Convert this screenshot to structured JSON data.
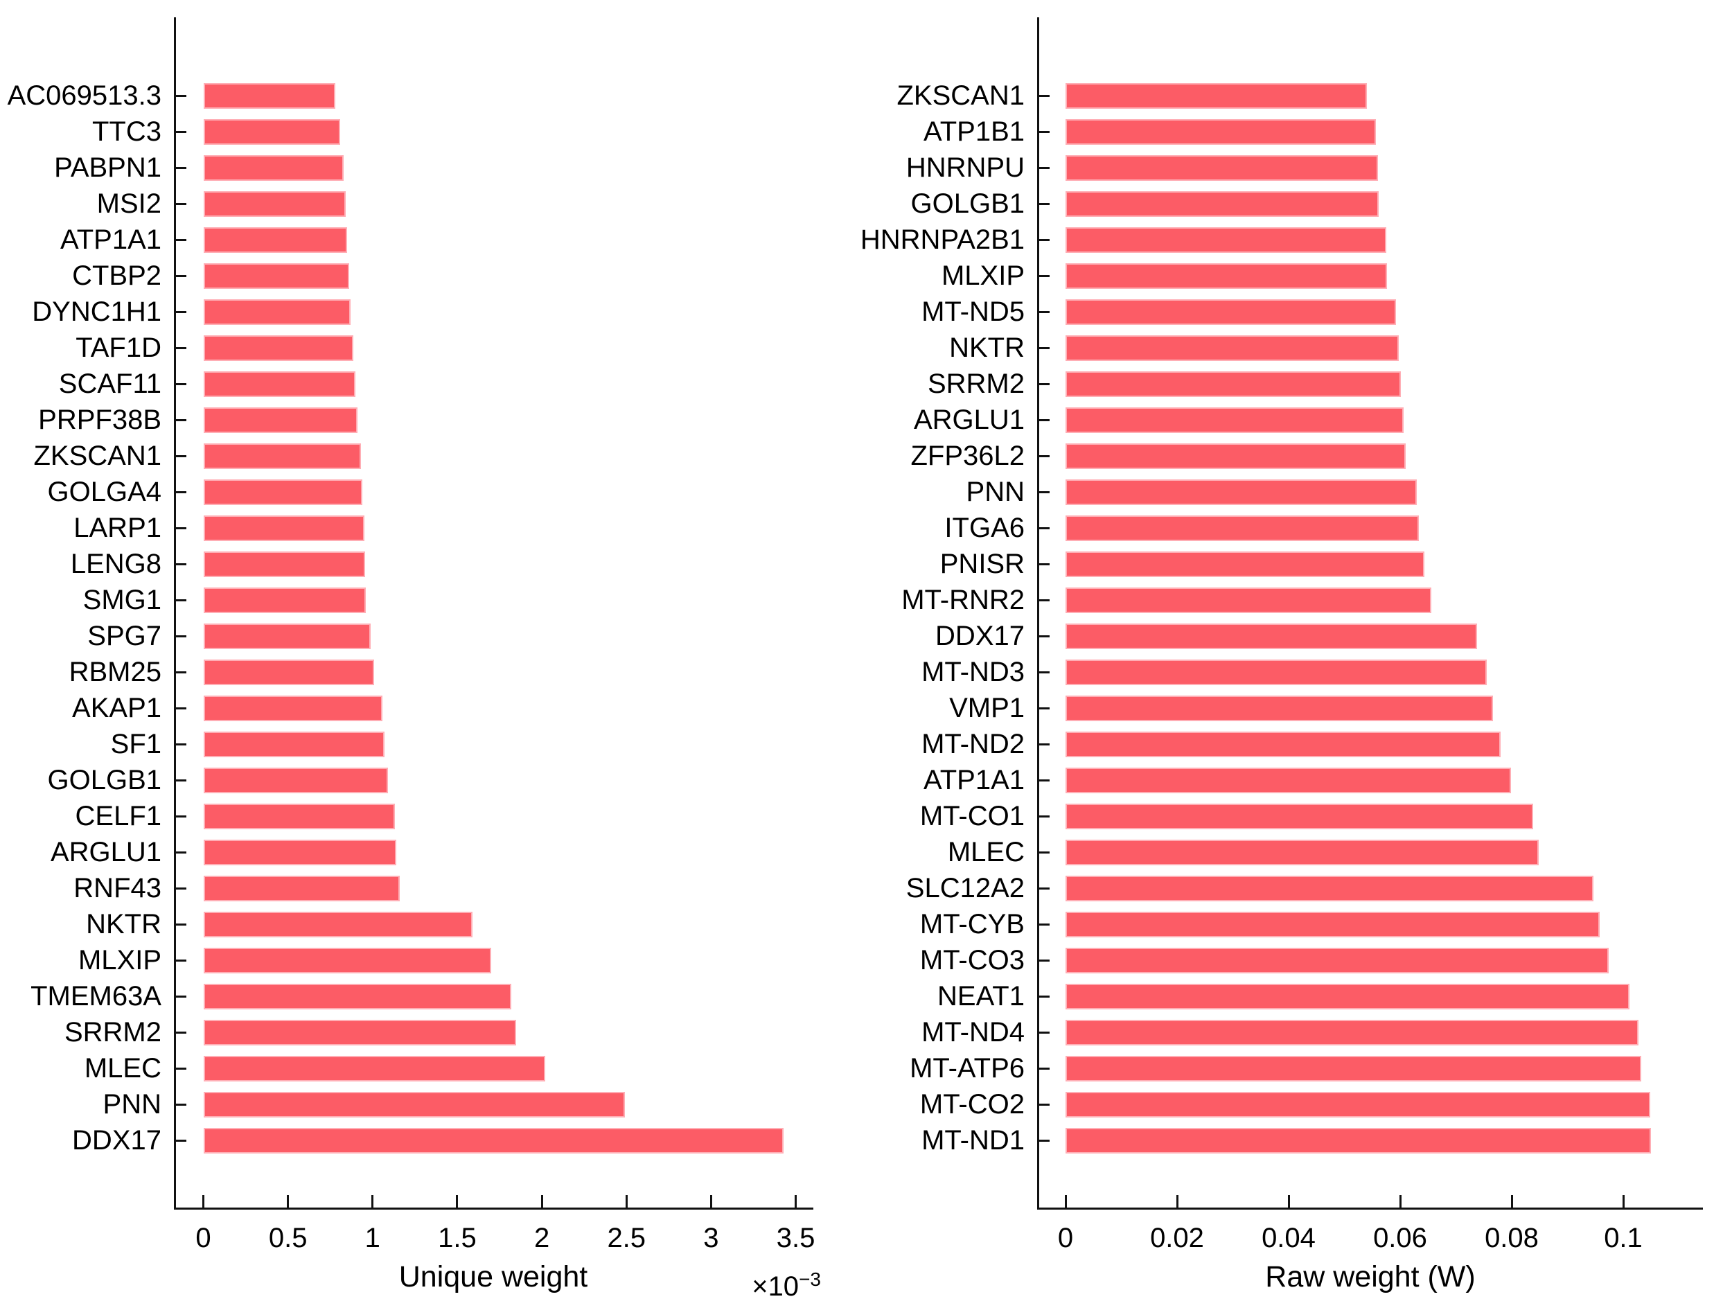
{
  "figure": {
    "background_color": "#ffffff",
    "bar_color": "#fc5c66",
    "bar_edge_color": "#ffaeb5",
    "axis_color": "#111111",
    "text_color": "#000000"
  },
  "chart_data": [
    {
      "type": "bar",
      "orientation": "horizontal",
      "title": "",
      "xlabel": "Unique weight",
      "ylabel": "",
      "axis_multiplier_base": "×10",
      "axis_multiplier_exp": "−3",
      "value_units": "1e-3",
      "xlim": [
        -0.17,
        3.6
      ],
      "grid": false,
      "legend": "none",
      "xticks": [
        0,
        0.5,
        1,
        1.5,
        2,
        2.5,
        3,
        3.5
      ],
      "xtick_labels": [
        "0",
        "0.5",
        "1",
        "1.5",
        "2",
        "2.5",
        "3",
        "3.5"
      ],
      "categories": [
        "AC069513.3",
        "TTC3",
        "PABPN1",
        "MSI2",
        "ATP1A1",
        "CTBP2",
        "DYNC1H1",
        "TAF1D",
        "SCAF11",
        "PRPF38B",
        "ZKSCAN1",
        "GOLGA4",
        "LARP1",
        "LENG8",
        "SMG1",
        "SPG7",
        "RBM25",
        "AKAP1",
        "SF1",
        "GOLGB1",
        "CELF1",
        "ARGLU1",
        "RNF43",
        "NKTR",
        "MLXIP",
        "TMEM63A",
        "SRRM2",
        "MLEC",
        "PNN",
        "DDX17"
      ],
      "values": [
        0.78,
        0.81,
        0.83,
        0.84,
        0.85,
        0.86,
        0.87,
        0.885,
        0.9,
        0.91,
        0.93,
        0.94,
        0.95,
        0.955,
        0.96,
        0.99,
        1.01,
        1.06,
        1.07,
        1.09,
        1.13,
        1.14,
        1.16,
        1.59,
        1.7,
        1.82,
        1.85,
        2.02,
        2.49,
        3.43
      ]
    },
    {
      "type": "bar",
      "orientation": "horizontal",
      "title": "",
      "xlabel": "Raw weight (W)",
      "ylabel": "",
      "axis_multiplier_base": "",
      "axis_multiplier_exp": "",
      "value_units": "1",
      "xlim": [
        -0.0051,
        0.1143
      ],
      "grid": false,
      "legend": "none",
      "xticks": [
        0,
        0.02,
        0.04,
        0.06,
        0.08,
        0.1
      ],
      "xtick_labels": [
        "0",
        "0.02",
        "0.04",
        "0.06",
        "0.08",
        "0.1"
      ],
      "categories": [
        "ZKSCAN1",
        "ATP1B1",
        "HNRNPU",
        "GOLGB1",
        "HNRNPA2B1",
        "MLXIP",
        "MT-ND5",
        "NKTR",
        "SRRM2",
        "ARGLU1",
        "ZFP36L2",
        "PNN",
        "ITGA6",
        "PNISR",
        "MT-RNR2",
        "DDX17",
        "MT-ND3",
        "VMP1",
        "MT-ND2",
        "ATP1A1",
        "MT-CO1",
        "MLEC",
        "SLC12A2",
        "MT-CYB",
        "MT-CO3",
        "NEAT1",
        "MT-ND4",
        "MT-ATP6",
        "MT-CO2",
        "MT-ND1"
      ],
      "values": [
        0.054,
        0.0556,
        0.056,
        0.0562,
        0.0575,
        0.0577,
        0.0592,
        0.0597,
        0.0601,
        0.0606,
        0.061,
        0.063,
        0.0634,
        0.0643,
        0.0656,
        0.0738,
        0.0755,
        0.0766,
        0.078,
        0.0799,
        0.0838,
        0.0849,
        0.0947,
        0.0958,
        0.0974,
        0.1011,
        0.1027,
        0.1032,
        0.1048,
        0.105
      ]
    }
  ]
}
